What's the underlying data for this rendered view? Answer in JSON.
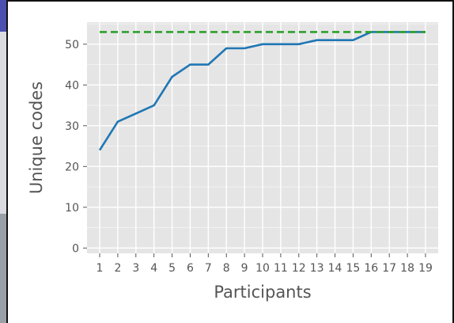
{
  "chart_data": {
    "type": "line",
    "xlabel": "Participants",
    "ylabel": "Unique codes",
    "x": [
      1,
      2,
      3,
      4,
      5,
      6,
      7,
      8,
      9,
      10,
      11,
      12,
      13,
      14,
      15,
      16,
      17,
      18,
      19
    ],
    "series": [
      {
        "values": [
          24,
          31,
          33,
          35,
          42,
          45,
          45,
          49,
          49,
          50,
          50,
          50,
          51,
          51,
          51,
          53,
          53,
          53,
          53
        ],
        "color": "#1f77b4",
        "style": "solid"
      },
      {
        "values": [
          53,
          53,
          53,
          53,
          53,
          53,
          53,
          53,
          53,
          53,
          53,
          53,
          53,
          53,
          53,
          53,
          53,
          53,
          53
        ],
        "color": "#2ca02c",
        "style": "dashed"
      }
    ],
    "xlim": [
      0.3,
      19.7
    ],
    "ylim": [
      -1.3,
      55.4
    ],
    "yticks": [
      0,
      10,
      20,
      30,
      40,
      50
    ],
    "grid": true,
    "background": "#e5e5e5",
    "grid_color": "#ffffff"
  }
}
